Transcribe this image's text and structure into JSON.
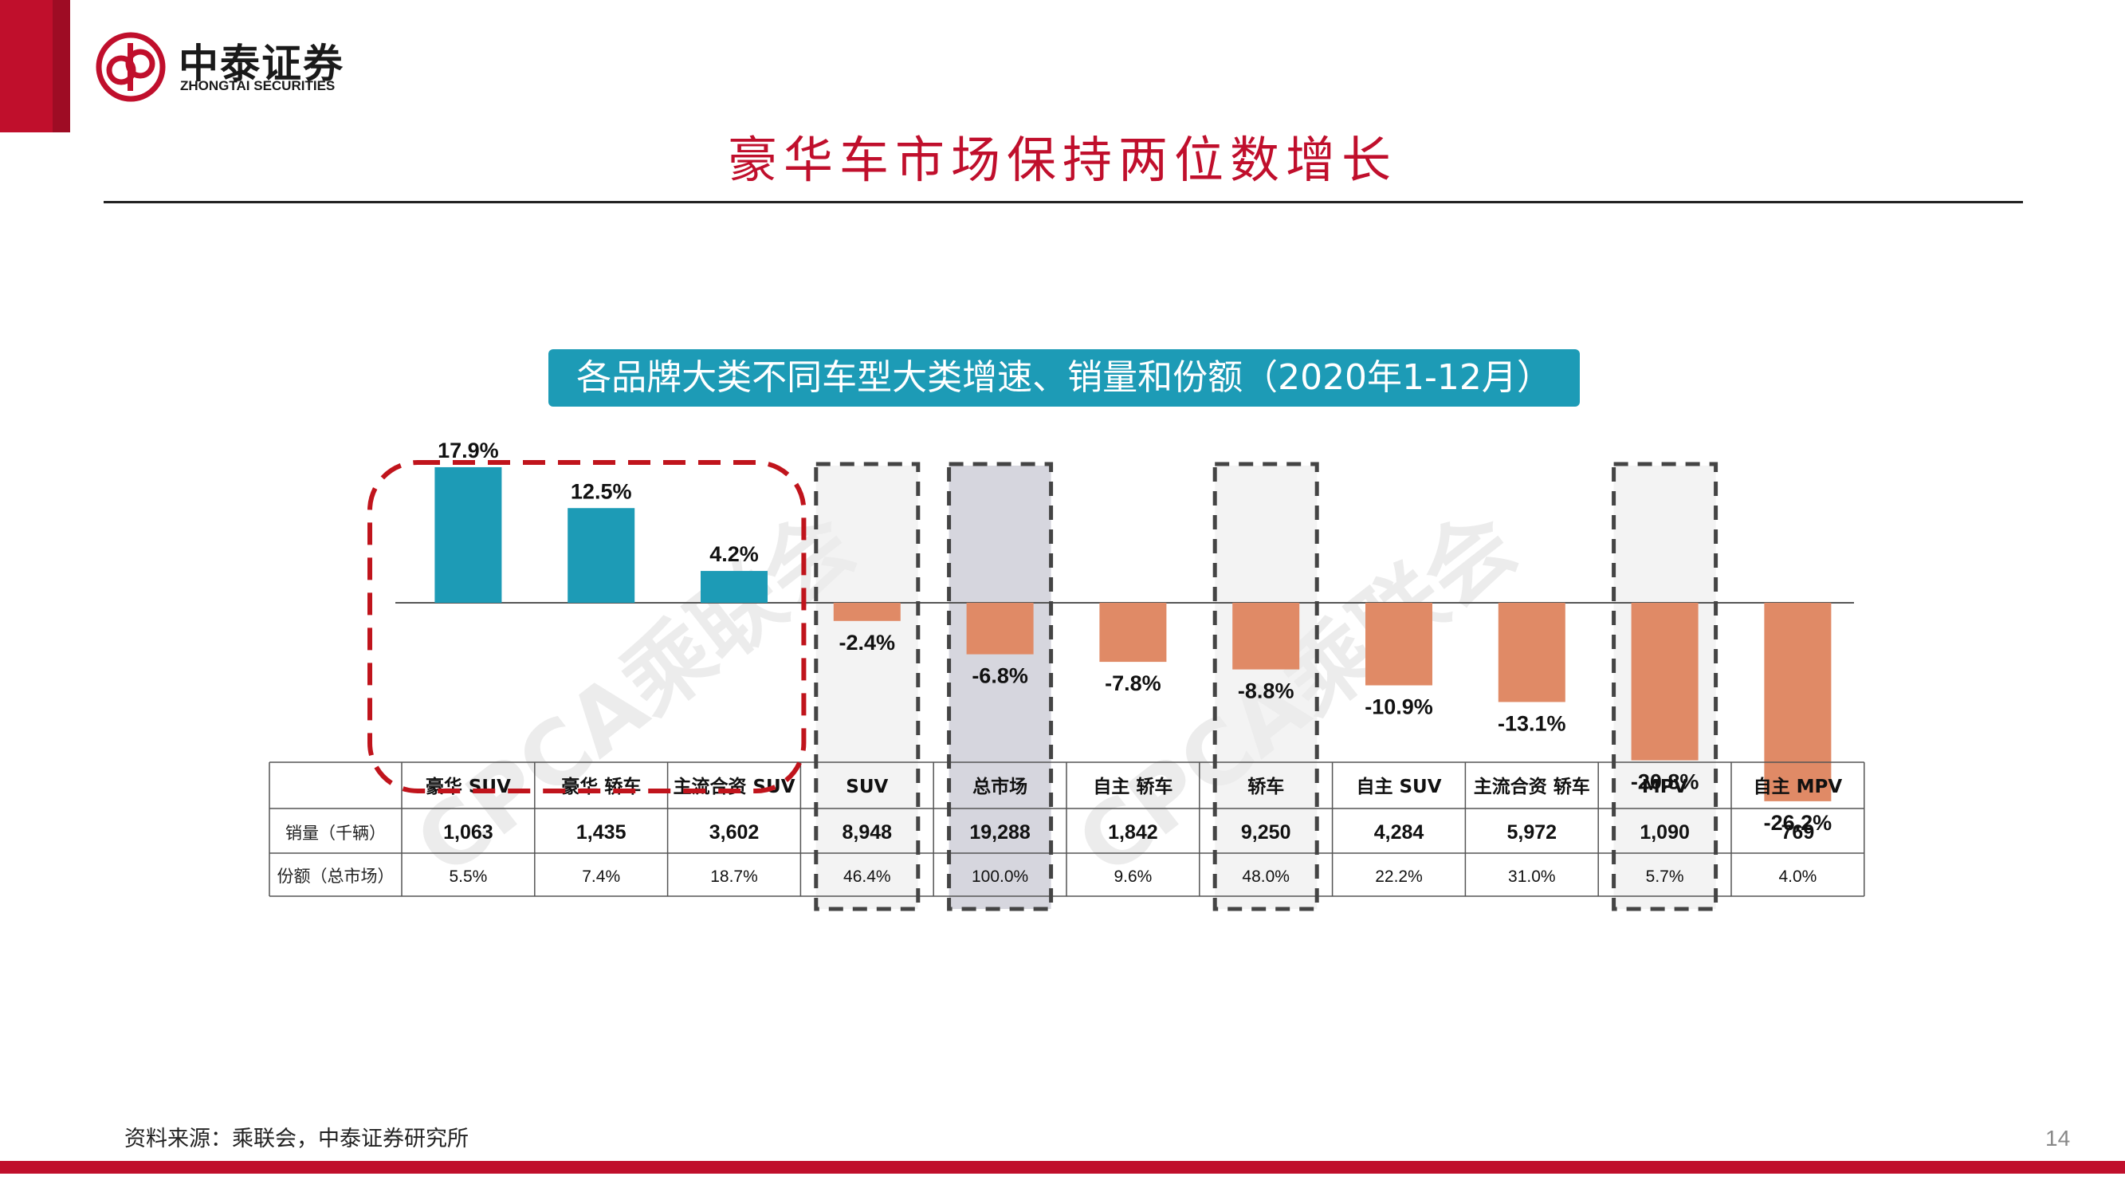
{
  "brand": {
    "name_cn": "中泰证券",
    "name_en": "ZHONGTAI SECURITIES",
    "color": "#c00f2c"
  },
  "page_title": "豪华车市场保持两位数增长",
  "chart_banner": "各品牌大类不同车型大类增速、销量和份额（2020年1-12月）",
  "watermark": "CPCA乘联会",
  "source": "资料来源：乘联会，中泰证券研究所",
  "page_number": "14",
  "chart_data": {
    "type": "bar",
    "title": "各品牌大类不同车型大类增速、销量和份额（2020年1-12月）",
    "categories": [
      "豪华 SUV",
      "豪华 轿车",
      "主流合资 SUV",
      "SUV",
      "总市场",
      "自主 轿车",
      "轿车",
      "自主 SUV",
      "主流合资 轿车",
      "MPV",
      "自主 MPV"
    ],
    "series": [
      {
        "name": "",
        "values": [
          17.9,
          12.5,
          4.2,
          -2.4,
          -6.8,
          -7.8,
          -8.8,
          -10.9,
          -13.1,
          -20.8,
          -26.2
        ]
      }
    ],
    "value_labels": [
      "17.9%",
      "12.5%",
      "4.2%",
      "-2.4%",
      "-6.8%",
      "-7.8%",
      "-8.8%",
      "-10.9%",
      "-13.1%",
      "-20.8%",
      "-26.2%"
    ],
    "table": {
      "rows": [
        {
          "label": "销量（千辆）",
          "values": [
            "1,063",
            "1,435",
            "3,602",
            "8,948",
            "19,288",
            "1,842",
            "9,250",
            "4,284",
            "5,972",
            "1,090",
            "769"
          ]
        },
        {
          "label": "份额（总市场）",
          "values": [
            "5.5%",
            "7.4%",
            "18.7%",
            "46.4%",
            "100.0%",
            "9.6%",
            "48.0%",
            "22.2%",
            "31.0%",
            "5.7%",
            "4.0%"
          ]
        }
      ]
    },
    "highlighted_groups": {
      "red_dashed": [
        0,
        1,
        2
      ],
      "gray_dashed": [
        3,
        4,
        6,
        9
      ],
      "shaded": [
        4
      ]
    },
    "colors": {
      "positive": "#1d9bb6",
      "negative": "#e08a66",
      "highlight_red": "#c0141c",
      "dash_gray": "#444444",
      "shade": "#d6d6de"
    },
    "ylim": [
      -30,
      20
    ],
    "grid": false
  }
}
